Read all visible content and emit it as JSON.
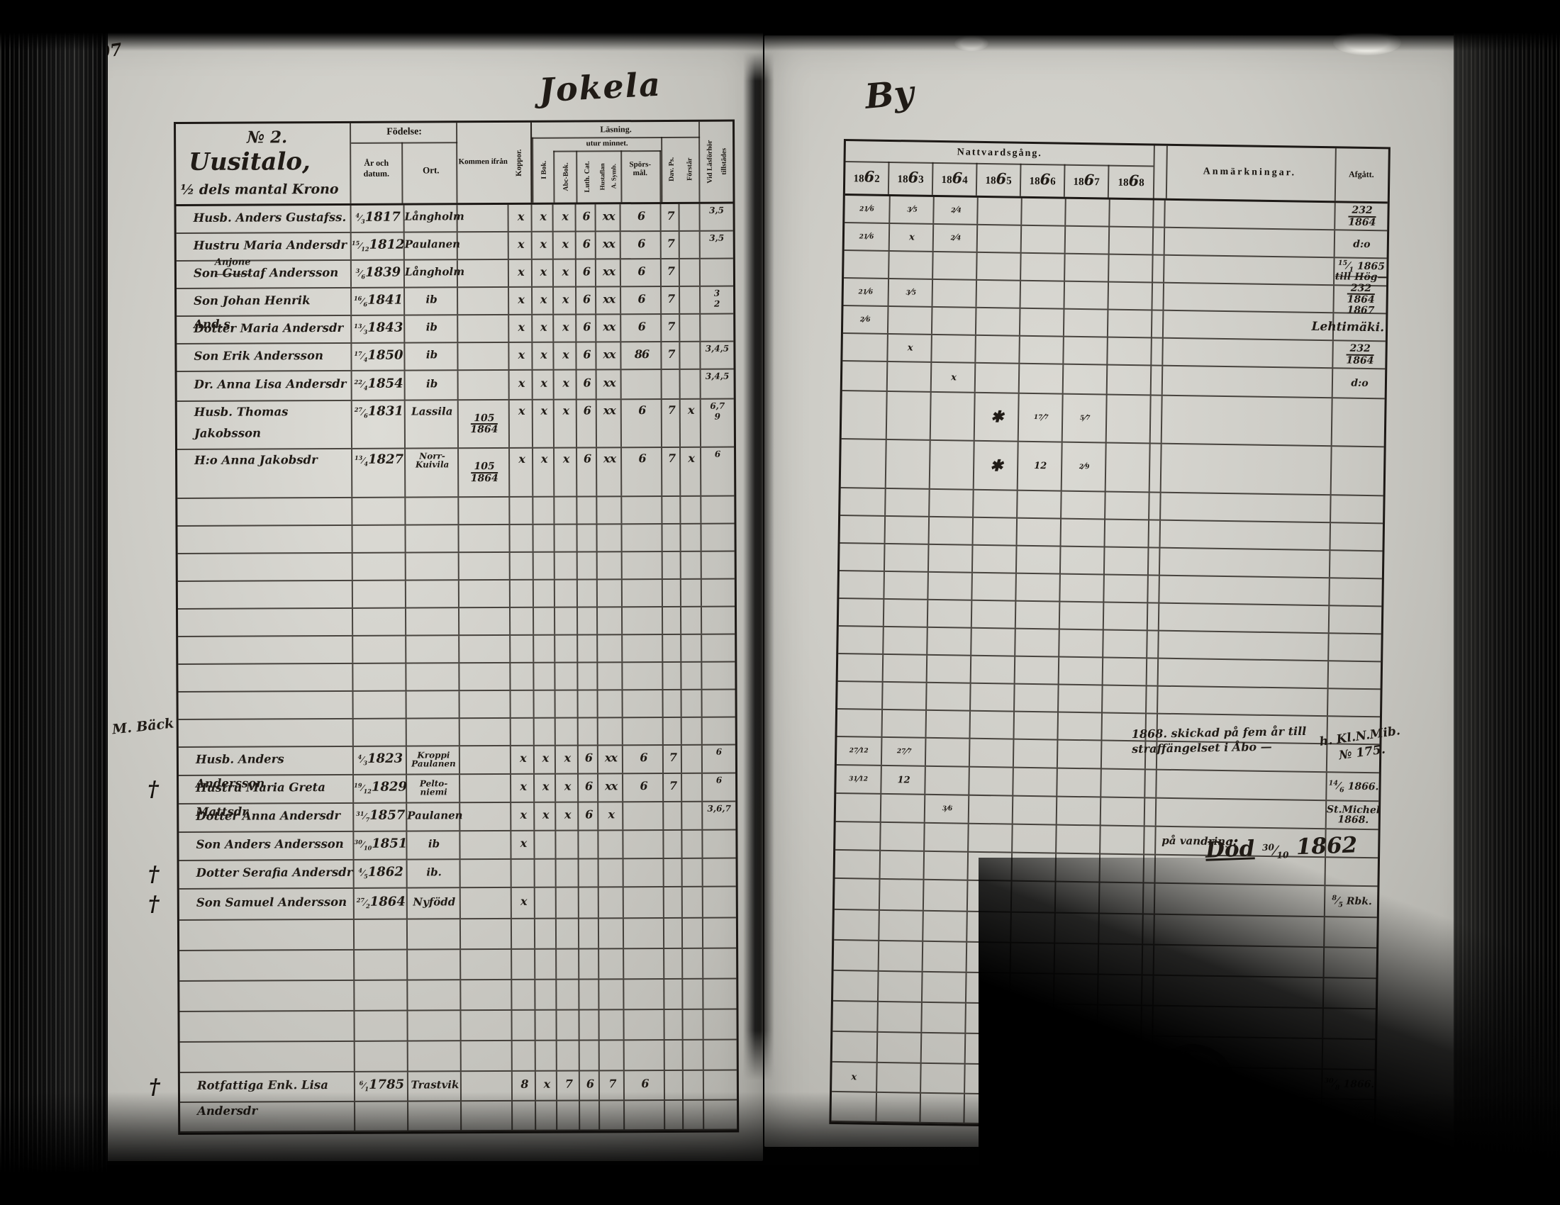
{
  "page": {
    "number": "107",
    "left_script_title": "Jokela",
    "right_script_title": "By"
  },
  "left_table": {
    "house": {
      "no": "№ 2.",
      "name": "Uusitalo,",
      "mantal": "½ dels mantal Krono"
    },
    "headers": {
      "fodelse": "Födelse:",
      "ar_och_datum": "År och datum.",
      "ort": "Ort.",
      "kommen": "Kommen ifrån",
      "koppor": "Koppor.",
      "lasning": "Läsning.",
      "utur": "utur minnet.",
      "i_bok": "I Bok.",
      "abc": "Abc-Bok.",
      "luth": "Luth. Cat.",
      "hust1": "Hustaflan",
      "hust2": "A. Symb.",
      "spors1": "Spörs-",
      "spors2": "mål.",
      "dav": "Dav. Ps.",
      "forstar": "Förstår",
      "vid1": "Vid Läsförhör",
      "vid2": "tillstädes"
    },
    "rows": [
      {
        "name": "Husb. Anders Gustafss.",
        "b": "4/3|1817",
        "ort": "Långholm",
        "mk": [
          "x",
          "x",
          "x",
          "6",
          "xx",
          "6",
          "7",
          ""
        ],
        "vid": "3,5"
      },
      {
        "name": "Hustru Maria Andersdr",
        "b": "15/12|1812",
        "ort": "Paulanen",
        "mk": [
          "x",
          "x",
          "x",
          "6",
          "xx",
          "6",
          "7",
          ""
        ],
        "vid": "3,5"
      },
      {
        "note": "Anjone",
        "name": "Son Gustaf Andersson",
        "b": "3/6|1839",
        "ort": "Långholm",
        "mk": [
          "x",
          "x",
          "x",
          "6",
          "xx",
          "6",
          "7",
          ""
        ]
      },
      {
        "name": "Son Johan Henrik And.s.",
        "b": "16/6|1841",
        "ort": "ib",
        "mk": [
          "x",
          "x",
          "x",
          "6",
          "xx",
          "6",
          "7",
          ""
        ],
        "vid": "3",
        "vid2": "2"
      },
      {
        "name": "Dotter Maria Andersdr",
        "b": "13/3|1843",
        "ort": "ib",
        "mk": [
          "x",
          "x",
          "x",
          "6",
          "xx",
          "6",
          "7",
          ""
        ]
      },
      {
        "name": "Son Erik Andersson",
        "b": "17/4|1850",
        "ort": "ib",
        "mk": [
          "x",
          "x",
          "x",
          "6",
          "xx",
          "86",
          "7",
          ""
        ],
        "vid": "3,4,5"
      },
      {
        "name": "Dr. Anna Lisa Andersdr",
        "b": "22/4|1854",
        "ort": "ib",
        "mk": [
          "x",
          "x",
          "x",
          "6",
          "xx",
          "",
          "",
          ""
        ],
        "vid": "3,4,5"
      },
      {
        "name": "Husb. Thomas Jakobsson",
        "b": "27/6|1831",
        "ort": "Lassila",
        "kom": "105|1864",
        "mk": [
          "x",
          "x",
          "x",
          "6",
          "xx",
          "6",
          "7",
          "x"
        ],
        "vid": "6,7",
        "vid2": "9",
        "tall": true
      },
      {
        "name": "H:o Anna Jakobsdr",
        "b": "13/4|1827",
        "ort": "Norr-|Kuivila",
        "kom": "105|1864",
        "mk": [
          "x",
          "x",
          "x",
          "6",
          "xx",
          "6",
          "7",
          "x"
        ],
        "vid": "6",
        "tall": true
      },
      {},
      {},
      {},
      {},
      {},
      {},
      {},
      {},
      {},
      {
        "name": "Husb. Anders Andersson",
        "b": "4/3|1823",
        "ort": "Kroppi|Paulanen",
        "mk": [
          "x",
          "x",
          "x",
          "6",
          "xx",
          "6",
          "7",
          ""
        ],
        "vid": "6"
      },
      {
        "m": "†",
        "name": "Hustru Maria Greta Mattsdr",
        "b": "19/12|1829",
        "ort": "Pelto-|niemi",
        "mk": [
          "x",
          "x",
          "x",
          "6",
          "xx",
          "6",
          "7",
          ""
        ],
        "vid": "6"
      },
      {
        "name": "Dotter Anna Andersdr",
        "b": "31/7|1857",
        "ort": "Paulanen",
        "mk": [
          "x",
          "x",
          "x",
          "6",
          "x",
          "",
          "",
          ""
        ],
        "vid": "3,6,7"
      },
      {
        "name": "Son Anders Andersson",
        "b": "30/10|1851",
        "ort": "ib",
        "mk": [
          "x",
          "",
          "",
          "",
          "",
          "",
          "",
          ""
        ]
      },
      {
        "m": "†",
        "name": "Dotter Serafia Andersdr",
        "b": "4/5|1862",
        "ort": "ib."
      },
      {
        "m": "†",
        "name": "Son Samuel Andersson",
        "b": "27/2|1864",
        "ort": "Nyfödd",
        "mk": [
          "x",
          "",
          "",
          "",
          "",
          "",
          "",
          ""
        ]
      },
      {},
      {},
      {},
      {},
      {},
      {
        "m": "†",
        "name": "Rotfattiga Enk. Lisa Andersdr",
        "b": "6/1|1785",
        "ort": "Trastvik",
        "mk": [
          "8",
          "x",
          "7",
          "6",
          "7",
          "6",
          "",
          ""
        ]
      },
      {}
    ]
  },
  "right_table": {
    "headers": {
      "natt": "Nattvardsgång.",
      "years": [
        "1862",
        "1863",
        "1864",
        "1865",
        "1866",
        "1867",
        "1868"
      ],
      "anm": "Anmärkningar.",
      "afgatt": "Afgått."
    },
    "rows": [
      {
        "y": [
          "21/6",
          "3/5",
          "2/4",
          "",
          "",
          "",
          ""
        ],
        "af": "232",
        "af2": "1864",
        "u": true
      },
      {
        "y": [
          "21/6",
          "x",
          "2/4",
          "",
          "",
          "",
          ""
        ],
        "af": "d:o"
      },
      {
        "af": "15/1 1865",
        "af2": "till Hög—",
        "strike": true
      },
      {
        "y": [
          "21/6",
          "3/5",
          "",
          "",
          "",
          "",
          ""
        ],
        "af": "232",
        "af2": "1864",
        "af3": "1867",
        "u": true
      },
      {
        "y": [
          "2/6",
          "",
          "",
          "",
          "",
          "",
          ""
        ],
        "af": "Lehtimäki.",
        "afw": true
      },
      {
        "y": [
          "",
          "x",
          "",
          "",
          "",
          "",
          ""
        ],
        "af": "232",
        "af2": "1864",
        "u": true
      },
      {
        "y": [
          "",
          "",
          "x",
          "",
          "",
          "",
          ""
        ],
        "af": "d:o"
      },
      {
        "y": [
          "",
          "",
          "",
          "✱",
          "17/7",
          "5/7",
          ""
        ]
      },
      {
        "y": [
          "",
          "",
          "",
          "✱",
          "12",
          "2/9",
          ""
        ]
      },
      {},
      {},
      {},
      {},
      {},
      {},
      {},
      {},
      {},
      {
        "y": [
          "27/12",
          "27/7",
          "",
          "",
          "",
          "",
          ""
        ]
      },
      {
        "y": [
          "31/12",
          "12",
          "",
          "",
          "",
          "",
          ""
        ],
        "af": "14/6 1866."
      },
      {
        "y": [
          "",
          "",
          "3/6",
          "",
          "",
          "",
          ""
        ],
        "af": "St.Michel",
        "af2": "1868."
      },
      {
        "anm": "på vandring."
      },
      {},
      {
        "af": "8/5 Rbk."
      },
      {},
      {},
      {},
      {},
      {},
      {
        "y": [
          "x",
          "",
          "",
          "",
          "",
          "",
          ""
        ],
        "af": "30/8 1866."
      },
      {}
    ]
  },
  "annotations": {
    "anjone": "Anjone",
    "m_back": "M. Bäck",
    "anm_1868_l1": "1868. skickad på fem år till",
    "anm_1868_l2": "straffängelset i Åbo —",
    "kl_note_l1": "h. Kl.N.Mib.",
    "kl_note_l2": "№ 175.",
    "dod_word": "Död",
    "dod_date": "30/10",
    "dod_year": "1862"
  }
}
